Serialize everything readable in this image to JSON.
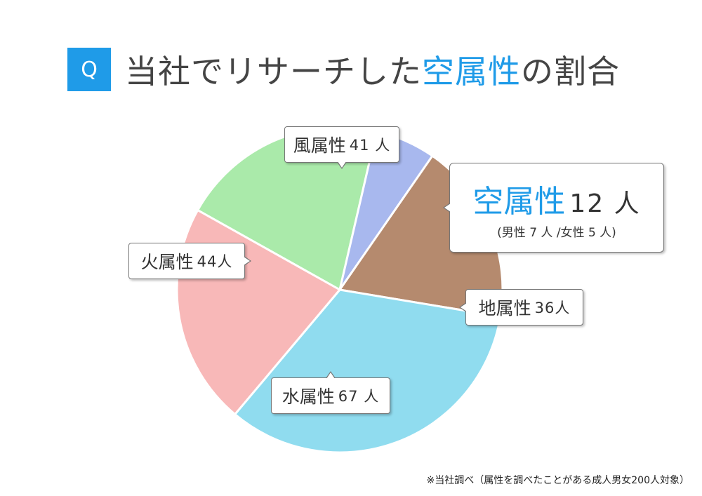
{
  "header": {
    "badge": "Q",
    "title_prefix": "当社でリサーチした",
    "title_accent": "空属性",
    "title_suffix": "の割合"
  },
  "colors": {
    "accent": "#1f9be8",
    "wind": "#aaeaaa",
    "sky": "#a8b8ee",
    "earth": "#b58a6e",
    "water": "#90dcef",
    "fire": "#f8b8b8"
  },
  "chart_data": {
    "type": "pie",
    "title": "当社でリサーチした空属性の割合",
    "slices": [
      {
        "label": "風属性",
        "value": 41,
        "unit": "人",
        "color": "#aaeaaa"
      },
      {
        "label": "空属性",
        "value": 12,
        "unit": "人",
        "color": "#a8b8ee"
      },
      {
        "label": "地属性",
        "value": 36,
        "unit": "人",
        "color": "#b58a6e"
      },
      {
        "label": "水属性",
        "value": 67,
        "unit": "人",
        "color": "#90dcef"
      },
      {
        "label": "火属性",
        "value": 44,
        "unit": "人",
        "color": "#f8b8b8"
      }
    ]
  },
  "labels": {
    "wind": {
      "name": "風属性",
      "count": "41 人"
    },
    "fire": {
      "name": "火属性",
      "count": "44人"
    },
    "earth": {
      "name": "地属性",
      "count": "36人"
    },
    "water": {
      "name": "水属性",
      "count": "67 人"
    },
    "sky": {
      "name": "空属性",
      "count": "12 人",
      "breakdown": "(男性 7 人 /女性 5 人)"
    }
  },
  "footnote": "※当社調べ（属性を調べたことがある成人男女200人対象）"
}
